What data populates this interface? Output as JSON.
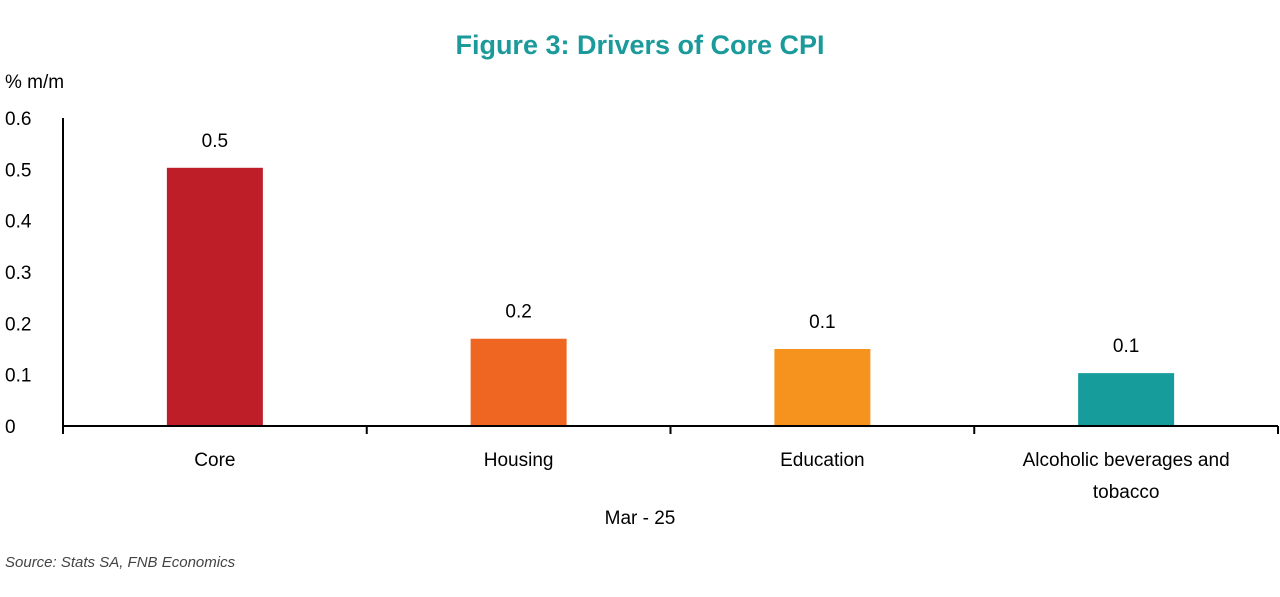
{
  "chart_data": {
    "type": "bar",
    "title": "Figure 3: Drivers of Core CPI",
    "ylabel": "% m/m",
    "xlabel": "Mar - 25",
    "categories": [
      "Core",
      "Housing",
      "Education",
      "Alcoholic beverages and tobacco"
    ],
    "values": [
      0.503,
      0.17,
      0.15,
      0.103
    ],
    "data_labels": [
      "0.5",
      "0.2",
      "0.1",
      "0.1"
    ],
    "colors": [
      "#be1e27",
      "#ef6522",
      "#f6921e",
      "#179c9c"
    ],
    "ylim": [
      0,
      0.6
    ],
    "yticks": [
      "0",
      "0.1",
      "0.2",
      "0.3",
      "0.4",
      "0.5",
      "0.6"
    ],
    "grid": false,
    "legend": "none"
  },
  "source": "Source: Stats SA, FNB Economics"
}
